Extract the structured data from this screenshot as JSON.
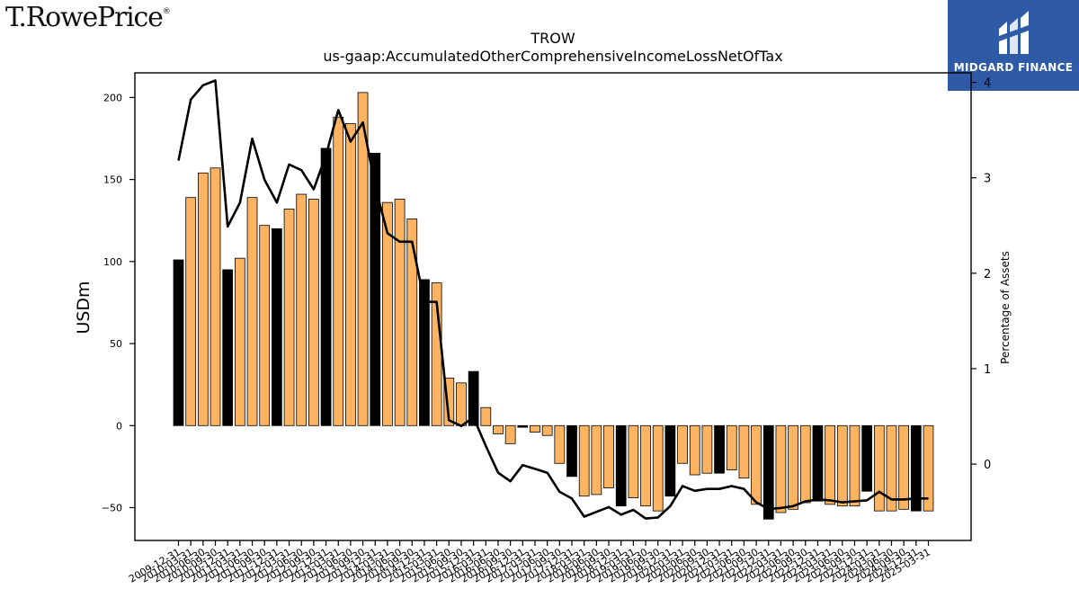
{
  "branding": {
    "logo_text": "T.RowePrice",
    "logo_mark": "®",
    "partner_name": "MIDGARD FINANCE",
    "partner_color": "#2f5aa6"
  },
  "chart_data": {
    "type": "bar",
    "title": "TROW",
    "subtitle": "us-gaap:AccumulatedOtherComprehensiveIncomeLossNetOfTax",
    "ylabel": "USDm",
    "y2label": "Percentage of Assets",
    "ylim": [
      -70,
      215
    ],
    "y2lim": [
      -0.8,
      4.1
    ],
    "yticks": [
      -50,
      0,
      50,
      100,
      150,
      200
    ],
    "y2ticks": [
      0,
      1,
      2,
      3,
      4
    ],
    "colors": {
      "bar": "#fdb462",
      "bar_q4": "#000000",
      "line": "#000000"
    },
    "categories": [
      "2009-12-31",
      "2010-03-31",
      "2010-06-30",
      "2010-09-30",
      "2010-12-31",
      "2011-03-31",
      "2011-06-30",
      "2011-09-30",
      "2011-12-31",
      "2012-03-31",
      "2012-06-30",
      "2012-09-30",
      "2012-12-31",
      "2013-03-31",
      "2013-06-30",
      "2013-09-30",
      "2013-12-31",
      "2014-03-31",
      "2014-06-30",
      "2014-09-30",
      "2014-12-31",
      "2015-03-31",
      "2015-06-30",
      "2015-09-30",
      "2015-12-31",
      "2016-03-31",
      "2016-06-30",
      "2016-09-30",
      "2016-12-31",
      "2017-03-31",
      "2017-06-30",
      "2017-09-30",
      "2017-12-31",
      "2018-03-31",
      "2018-06-30",
      "2018-09-30",
      "2018-12-31",
      "2019-03-31",
      "2019-06-30",
      "2019-09-30",
      "2019-12-31",
      "2020-03-31",
      "2020-06-30",
      "2020-09-30",
      "2020-12-31",
      "2021-03-31",
      "2021-06-30",
      "2021-09-30",
      "2021-12-31",
      "2022-03-31",
      "2022-06-30",
      "2022-09-30",
      "2022-12-31",
      "2023-03-31",
      "2023-06-30",
      "2023-09-30",
      "2023-12-31",
      "2024-03-31",
      "2024-06-30",
      "2024-09-30",
      "2024-12-31",
      "2025-03-31"
    ],
    "xtick_labels": [
      "2009-12-31",
      "2010-03-31",
      "2010-06-30",
      "2010-09-30",
      "2010-12-31",
      "2011-03-31",
      "2011-06-30",
      "2011-09-30",
      "2011-12-31",
      "2012-03-31",
      "2012-06-30",
      "2012-09-30",
      "2012-12-31",
      "2013-03-31",
      "2013-06-30",
      "2013-09-30",
      "2013-12-31",
      "2014-03-31",
      "2014-06-30",
      "2014-09-30",
      "2014-12-31",
      "2015-03-31",
      "2015-06-30",
      "2015-09-30",
      "2015-12-31",
      "2016-03-31",
      "2016-06-30",
      "2016-09-30",
      "2016-12-31",
      "2017-03-31",
      "2017-06-30",
      "2017-09-30",
      "2017-12-31",
      "2018-03-31",
      "2018-06-30",
      "2018-09-30",
      "2018-12-31",
      "2019-03-31",
      "2019-06-30",
      "2019-09-30",
      "2019-12-31",
      "2020-03-31",
      "2020-06-30",
      "2020-09-30",
      "2020-12-31",
      "2021-03-31",
      "2021-06-30",
      "2021-09-30",
      "2021-12-31",
      "2022-03-31",
      "2022-06-30",
      "2022-09-30",
      "2022-12-31",
      "2023-03-31",
      "2023-06-30",
      "2023-09-30",
      "2023-12-31",
      "2024-03-31",
      "2024-06-30",
      "2024-09-30",
      "2024-12-31",
      "2025-03-31"
    ],
    "series": [
      {
        "name": "AccumulatedOtherComprehensiveIncomeLossNetOfTax",
        "type": "bar",
        "axis": "left",
        "values": [
          101,
          139,
          154,
          157,
          95,
          102,
          139,
          122,
          120,
          132,
          141,
          138,
          169,
          188,
          184,
          203,
          166,
          136,
          138,
          126,
          89,
          87,
          29,
          26,
          33,
          11,
          -5,
          -11,
          -1,
          -4,
          -6,
          -23,
          -31,
          -43,
          -42,
          -38,
          -49,
          -44,
          -49,
          -52,
          -43,
          -23,
          -30,
          -29,
          -29,
          -27,
          -32,
          -48,
          -57,
          -53,
          -51,
          -47,
          -46,
          -48,
          -49,
          -49,
          -40,
          -52,
          -52,
          -51,
          -52,
          -52
        ]
      },
      {
        "name": "Percentage of Assets",
        "type": "line",
        "axis": "right",
        "values": [
          3.18,
          3.82,
          3.97,
          4.02,
          2.49,
          2.74,
          3.41,
          2.98,
          2.74,
          3.14,
          3.08,
          2.88,
          3.24,
          3.71,
          3.38,
          3.58,
          2.91,
          2.42,
          2.33,
          2.33,
          1.7,
          1.7,
          0.46,
          0.4,
          0.49,
          0.19,
          -0.09,
          -0.18,
          -0.01,
          -0.05,
          -0.09,
          -0.29,
          -0.36,
          -0.55,
          -0.5,
          -0.45,
          -0.53,
          -0.48,
          -0.57,
          -0.56,
          -0.44,
          -0.23,
          -0.28,
          -0.26,
          -0.26,
          -0.23,
          -0.26,
          -0.4,
          -0.47,
          -0.46,
          -0.44,
          -0.39,
          -0.37,
          -0.38,
          -0.4,
          -0.39,
          -0.38,
          -0.29,
          -0.37,
          -0.37,
          -0.36,
          -0.36
        ]
      }
    ],
    "grid": false,
    "legend": "none"
  }
}
